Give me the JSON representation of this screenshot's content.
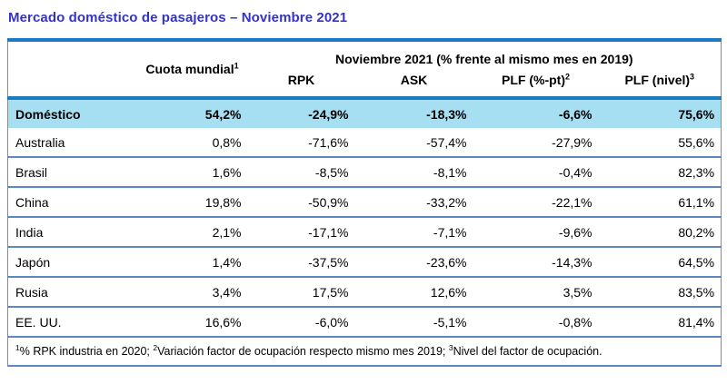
{
  "title": "Mercado doméstico de pasajeros – Noviembre 2021",
  "colors": {
    "title_blue": "#3333cc",
    "thick_rule_blue": "#1b7ac1",
    "row_separator_blue": "#5d87c3",
    "highlight_row_bg": "#a6def2",
    "outer_border_gray": "#8c8c8c",
    "text": "#000000"
  },
  "table": {
    "cuota_header": {
      "label": "Cuota mundial",
      "sup": "1"
    },
    "group_header": "Noviembre 2021 (% frente al mismo mes en 2019)",
    "sub_headers": [
      {
        "label": "RPK",
        "sup": ""
      },
      {
        "label": "ASK",
        "sup": ""
      },
      {
        "label": "PLF (%-pt)",
        "sup": "2"
      },
      {
        "label": "PLF (nivel)",
        "sup": "3"
      }
    ],
    "rows": [
      {
        "label": "Doméstico",
        "highlight": true,
        "values": [
          "54,2%",
          "-24,9%",
          "-18,3%",
          "-6,6%",
          "75,6%"
        ]
      },
      {
        "label": "Australia",
        "highlight": false,
        "values": [
          "0,8%",
          "-71,6%",
          "-57,4%",
          "-27,9%",
          "55,6%"
        ]
      },
      {
        "label": "Brasil",
        "highlight": false,
        "values": [
          "1,6%",
          "-8,5%",
          "-8,1%",
          "-0,4%",
          "82,3%"
        ]
      },
      {
        "label": "China",
        "highlight": false,
        "values": [
          "19,8%",
          "-50,9%",
          "-33,2%",
          "-22,1%",
          "61,1%"
        ]
      },
      {
        "label": "India",
        "highlight": false,
        "values": [
          "2,1%",
          "-17,1%",
          "-7,1%",
          "-9,6%",
          "80,2%"
        ]
      },
      {
        "label": "Japón",
        "highlight": false,
        "values": [
          "1,4%",
          "-37,5%",
          "-23,6%",
          "-14,3%",
          "64,5%"
        ]
      },
      {
        "label": "Rusia",
        "highlight": false,
        "values": [
          "3,4%",
          "17,5%",
          "12,6%",
          "3,5%",
          "83,5%"
        ]
      },
      {
        "label": "EE. UU.",
        "highlight": false,
        "values": [
          "16,6%",
          "-6,0%",
          "-5,1%",
          "-0,8%",
          "81,4%"
        ]
      }
    ],
    "footnote": {
      "segments": [
        {
          "sup": "1",
          "text": "% RPK industria en 2020; "
        },
        {
          "sup": "2",
          "text": "Variación factor de ocupación respecto mismo mes 2019; "
        },
        {
          "sup": "3",
          "text": "Nivel del factor de ocupación."
        }
      ]
    }
  }
}
